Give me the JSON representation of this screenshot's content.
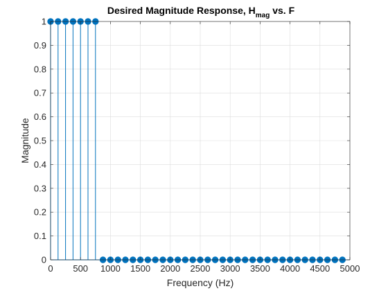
{
  "chart_data": {
    "type": "stem",
    "title": {
      "main": "Desired Magnitude Response, H",
      "subscript": "mag",
      "suffix": " vs. F"
    },
    "xlabel": "Frequency (Hz)",
    "ylabel": "Magnitude",
    "xlim": [
      0,
      5000
    ],
    "ylim": [
      0,
      1
    ],
    "xticks": [
      0,
      500,
      1000,
      1500,
      2000,
      2500,
      3000,
      3500,
      4000,
      4500,
      5000
    ],
    "xtick_labels": [
      "0",
      "500",
      "1000",
      "1500",
      "2000",
      "2500",
      "3000",
      "3500",
      "4000",
      "4500",
      "5000"
    ],
    "yticks": [
      0,
      0.1,
      0.2,
      0.3,
      0.4,
      0.5,
      0.6,
      0.7,
      0.8,
      0.9,
      1
    ],
    "ytick_labels": [
      "0",
      "0.1",
      "0.2",
      "0.3",
      "0.4",
      "0.5",
      "0.6",
      "0.7",
      "0.8",
      "0.9",
      "1"
    ],
    "grid": true,
    "series": [
      {
        "color": "#0072BD",
        "x": [
          0,
          125,
          250,
          375,
          500,
          625,
          750,
          875,
          1000,
          1125,
          1250,
          1375,
          1500,
          1625,
          1750,
          1875,
          2000,
          2125,
          2250,
          2375,
          2500,
          2625,
          2750,
          2875,
          3000,
          3125,
          3250,
          3375,
          3500,
          3625,
          3750,
          3875,
          4000,
          4125,
          4250,
          4375,
          4500,
          4625,
          4750,
          4875
        ],
        "y": [
          1,
          1,
          1,
          1,
          1,
          1,
          1,
          0,
          0,
          0,
          0,
          0,
          0,
          0,
          0,
          0,
          0,
          0,
          0,
          0,
          0,
          0,
          0,
          0,
          0,
          0,
          0,
          0,
          0,
          0,
          0,
          0,
          0,
          0,
          0,
          0,
          0,
          0,
          0,
          0
        ]
      }
    ]
  }
}
